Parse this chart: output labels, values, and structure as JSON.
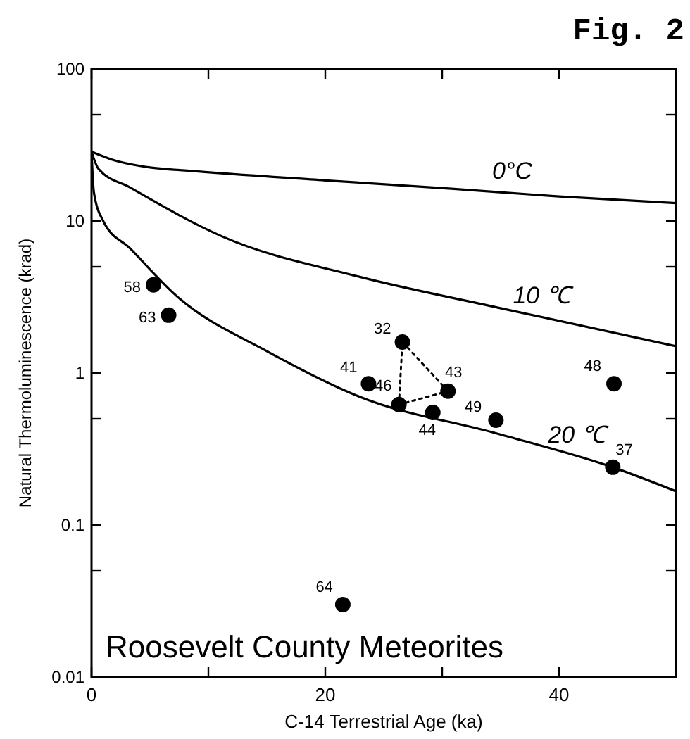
{
  "chart_data": {
    "type": "scatter",
    "title": "Fig. 2",
    "xlabel": "C-14 Terrestrial Age (ka)",
    "ylabel": "Natural Thermoluminescence (krad)",
    "log": "y",
    "xlim": [
      0,
      50
    ],
    "xticks": [
      0,
      {
        "value": 10,
        "label": null
      },
      20,
      {
        "value": 30,
        "label": null
      },
      40
    ],
    "ylim": [
      0.01,
      100
    ],
    "yticks": [
      0.01,
      {
        "value": 0.05,
        "label": null
      },
      0.1,
      {
        "value": 0.5,
        "label": null
      },
      1,
      {
        "value": 5,
        "label": null
      },
      10,
      {
        "value": 50,
        "label": null
      },
      100
    ],
    "grid": false,
    "marker": "circle",
    "series": [
      {
        "color": "#000000",
        "x": [
          5.3,
          6.6,
          26.6,
          23.7,
          26.3,
          30.5,
          29.2,
          34.6,
          44.7,
          44.6,
          21.5
        ],
        "values": [
          3.8,
          2.4,
          1.6,
          0.85,
          0.62,
          0.76,
          0.55,
          0.49,
          0.85,
          0.24,
          0.03
        ]
      },
      {
        "type": "line",
        "name": "0°C",
        "color": "#000000",
        "marker": "none",
        "line_style": "solid",
        "x": [
          0,
          2,
          5,
          8,
          20,
          30.8,
          40,
          50
        ],
        "values": [
          28.6,
          25,
          22.5,
          21.5,
          18.5,
          16.3,
          14.5,
          13.1
        ]
      },
      {
        "type": "line",
        "name": "10 ℃",
        "color": "#000000",
        "marker": "none",
        "line_style": "solid",
        "x": [
          0,
          0.6,
          3.3,
          11.2,
          22.9,
          34.7,
          50
        ],
        "values": [
          28.6,
          22,
          16.6,
          7.9,
          4.3,
          2.7,
          1.5
        ]
      },
      {
        "type": "line",
        "name": "20 ℃",
        "color": "#000000",
        "marker": "none",
        "line_style": "solid",
        "x": [
          0,
          0.2,
          1,
          3.3,
          7.3,
          15.1,
          22.9,
          34.7,
          44.6,
          50
        ],
        "values": [
          28.6,
          15.5,
          10,
          6.6,
          3.2,
          1.38,
          0.7,
          0.4,
          0.24,
          0.167
        ]
      },
      {
        "type": "line",
        "color": "#000000",
        "marker": "none",
        "line_style": "dotted",
        "x": [
          26.3,
          26.6,
          30.5
        ],
        "values": [
          0.62,
          1.6,
          0.76
        ]
      },
      {
        "type": "line",
        "color": "#000000",
        "marker": "none",
        "line_style": "dotted",
        "x": [
          26.3,
          30.5
        ],
        "values": [
          0.62,
          0.76
        ]
      }
    ],
    "annotations": [
      {
        "text": "58",
        "x": 5.3,
        "y": 3.8
      },
      {
        "text": "63",
        "x": 6.6,
        "y": 2.4
      },
      {
        "text": "32",
        "x": 26.6,
        "y": 1.6
      },
      {
        "text": "41",
        "x": 23.7,
        "y": 0.85
      },
      {
        "text": "46",
        "x": 26.3,
        "y": 0.62
      },
      {
        "text": "43",
        "x": 30.5,
        "y": 0.76
      },
      {
        "text": "44",
        "x": 29.2,
        "y": 0.55
      },
      {
        "text": "49",
        "x": 34.6,
        "y": 0.49
      },
      {
        "text": "48",
        "x": 44.7,
        "y": 0.85
      },
      {
        "text": "37",
        "x": 44.6,
        "y": 0.24
      },
      {
        "text": "64",
        "x": 21.5,
        "y": 0.03
      },
      "Roosevelt County Meteorites"
    ]
  }
}
